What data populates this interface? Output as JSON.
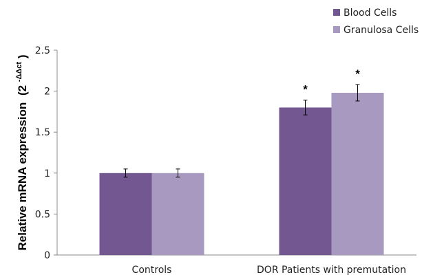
{
  "chart_data": {
    "type": "bar",
    "categories": [
      "Controls",
      "DOR Patients with premutation"
    ],
    "series": [
      {
        "name": "Blood Cells",
        "color": "#735790",
        "values": [
          1.0,
          1.8
        ],
        "errors": [
          0.05,
          0.09
        ],
        "significance": [
          "",
          "*"
        ]
      },
      {
        "name": "Granulosa Cells",
        "color": "#a799c0",
        "values": [
          1.0,
          1.98
        ],
        "errors": [
          0.05,
          0.1
        ],
        "significance": [
          "",
          "*"
        ]
      }
    ],
    "ylabel": "Relative mRNA expression",
    "ylabel_superscript": "-ΔΔct",
    "ylabel_prefix": "(2",
    "ylabel_suffix": ")",
    "ylim": [
      0,
      2.5
    ],
    "yticks": [
      "0",
      "0.5",
      "1",
      "1.5",
      "2",
      "2.5"
    ],
    "grid": false,
    "legend_position": "top-right"
  }
}
